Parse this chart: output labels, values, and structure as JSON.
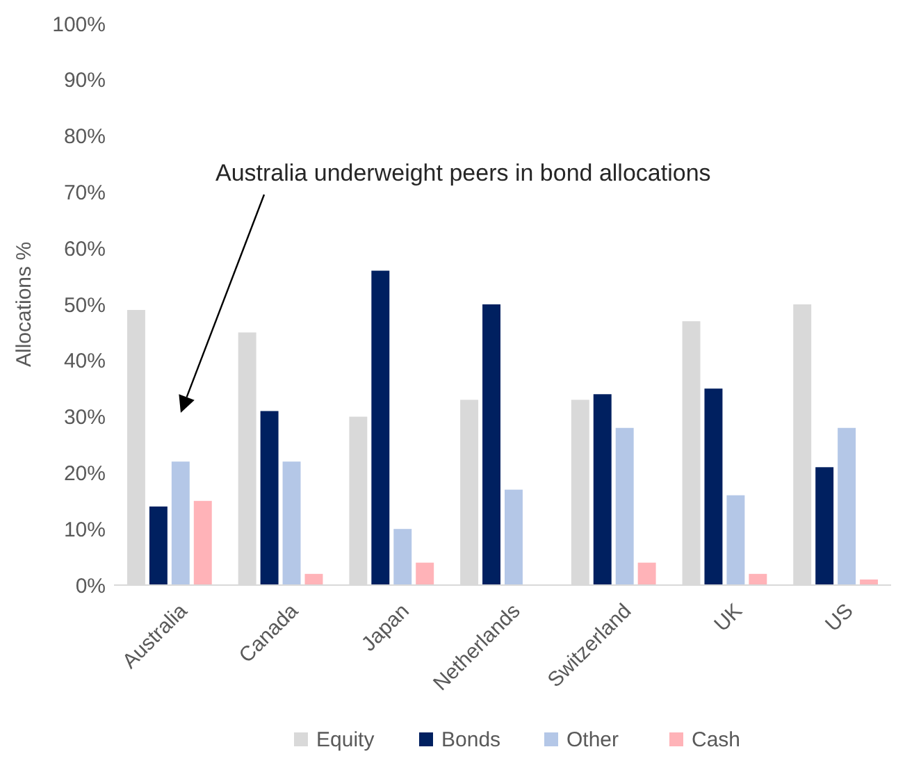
{
  "chart_data": {
    "type": "bar",
    "ylabel": "Allocations %",
    "categories": [
      "Australia",
      "Canada",
      "Japan",
      "Netherlands",
      "Switzerland",
      "UK",
      "US"
    ],
    "series": [
      {
        "name": "Equity",
        "color": "#d9d9d9",
        "values": [
          49,
          45,
          30,
          33,
          33,
          47,
          50
        ]
      },
      {
        "name": "Bonds",
        "color": "#002060",
        "values": [
          14,
          31,
          56,
          50,
          34,
          35,
          21
        ]
      },
      {
        "name": "Other",
        "color": "#b4c7e7",
        "values": [
          22,
          22,
          10,
          17,
          28,
          16,
          28
        ]
      },
      {
        "name": "Cash",
        "color": "#ffb3b8",
        "values": [
          15,
          2,
          4,
          0,
          4,
          2,
          1
        ]
      }
    ],
    "ylim": [
      0,
      100
    ],
    "yticks": [
      {
        "value": 0,
        "label": "0%"
      },
      {
        "value": 10,
        "label": "10%"
      },
      {
        "value": 20,
        "label": "20%"
      },
      {
        "value": 30,
        "label": "30%"
      },
      {
        "value": 40,
        "label": "40%"
      },
      {
        "value": 50,
        "label": "50%"
      },
      {
        "value": 60,
        "label": "60%"
      },
      {
        "value": 70,
        "label": "70%"
      },
      {
        "value": 80,
        "label": "80%"
      },
      {
        "value": 90,
        "label": "90%"
      },
      {
        "value": 100,
        "label": "100%"
      }
    ],
    "legend": "bottom",
    "annotations": [
      "Australia underweight peers in bond allocations"
    ]
  }
}
